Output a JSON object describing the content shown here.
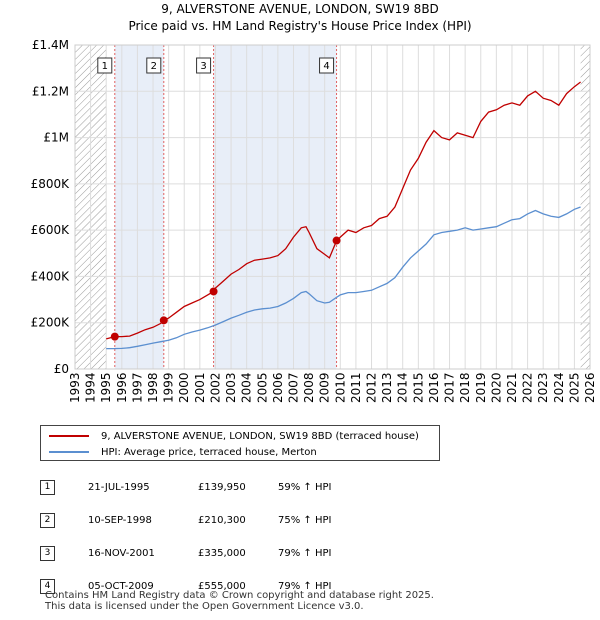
{
  "chart_title": "9, ALVERSTONE AVENUE, LONDON, SW19 8BD",
  "chart_subtitle": "Price paid vs. HM Land Registry's House Price Index (HPI)",
  "colors": {
    "property": "#c00000",
    "hpi": "#5b8fd0",
    "hatch": "#999999",
    "shade": "#e8eef8"
  },
  "chart_data": {
    "type": "line",
    "title": "9, ALVERSTONE AVENUE, LONDON, SW19 8BD",
    "subtitle": "Price paid vs. HM Land Registry's House Price Index (HPI)",
    "xlabel": "",
    "ylabel": "",
    "xlim": [
      1993,
      2026
    ],
    "ylim": [
      0,
      1400000
    ],
    "x_ticks": [
      1993,
      1994,
      1995,
      1996,
      1997,
      1998,
      1999,
      2000,
      2001,
      2002,
      2003,
      2004,
      2005,
      2006,
      2007,
      2008,
      2009,
      2010,
      2011,
      2012,
      2013,
      2014,
      2015,
      2016,
      2017,
      2018,
      2019,
      2020,
      2021,
      2022,
      2023,
      2024,
      2025,
      2026
    ],
    "y_ticks": [
      {
        "value": 0,
        "label": "£0"
      },
      {
        "value": 200000,
        "label": "£200K"
      },
      {
        "value": 400000,
        "label": "£400K"
      },
      {
        "value": 600000,
        "label": "£600K"
      },
      {
        "value": 800000,
        "label": "£800K"
      },
      {
        "value": 1000000,
        "label": "£1M"
      },
      {
        "value": 1200000,
        "label": "£1.2M"
      },
      {
        "value": 1400000,
        "label": "£1.4M"
      }
    ],
    "series": [
      {
        "name": "9, ALVERSTONE AVENUE, LONDON, SW19 8BD (terraced house)",
        "x": [
          1995.0,
          1995.55,
          1996.0,
          1996.5,
          1997.0,
          1997.5,
          1998.0,
          1998.5,
          1998.69,
          1999.0,
          1999.5,
          2000.0,
          2000.5,
          2001.0,
          2001.5,
          2001.88,
          2002.0,
          2002.5,
          2003.0,
          2003.5,
          2004.0,
          2004.5,
          2005.0,
          2005.5,
          2006.0,
          2006.5,
          2007.0,
          2007.5,
          2007.8,
          2008.0,
          2008.5,
          2009.0,
          2009.3,
          2009.76,
          2010.0,
          2010.5,
          2011.0,
          2011.5,
          2012.0,
          2012.5,
          2013.0,
          2013.5,
          2014.0,
          2014.5,
          2015.0,
          2015.5,
          2016.0,
          2016.5,
          2017.0,
          2017.5,
          2018.0,
          2018.5,
          2019.0,
          2019.5,
          2020.0,
          2020.5,
          2021.0,
          2021.5,
          2022.0,
          2022.5,
          2023.0,
          2023.5,
          2024.0,
          2024.5,
          2025.0,
          2025.4
        ],
        "values": [
          130000,
          139950,
          140000,
          142000,
          155000,
          170000,
          180000,
          197000,
          210300,
          220000,
          245000,
          270000,
          285000,
          300000,
          320000,
          335000,
          350000,
          380000,
          410000,
          430000,
          455000,
          470000,
          475000,
          480000,
          490000,
          520000,
          570000,
          610000,
          615000,
          590000,
          520000,
          495000,
          480000,
          555000,
          570000,
          600000,
          590000,
          610000,
          620000,
          650000,
          660000,
          700000,
          780000,
          860000,
          910000,
          980000,
          1030000,
          1000000,
          990000,
          1020000,
          1010000,
          1000000,
          1070000,
          1110000,
          1120000,
          1140000,
          1150000,
          1140000,
          1180000,
          1200000,
          1170000,
          1160000,
          1140000,
          1190000,
          1220000,
          1240000
        ]
      },
      {
        "name": "HPI: Average price, terraced house, Merton",
        "x": [
          1995.0,
          1995.5,
          1996.0,
          1996.5,
          1997.0,
          1997.5,
          1998.0,
          1998.5,
          1999.0,
          1999.5,
          2000.0,
          2000.5,
          2001.0,
          2001.5,
          2002.0,
          2002.5,
          2003.0,
          2003.5,
          2004.0,
          2004.5,
          2005.0,
          2005.5,
          2006.0,
          2006.5,
          2007.0,
          2007.5,
          2007.8,
          2008.0,
          2008.5,
          2009.0,
          2009.3,
          2009.76,
          2010.0,
          2010.5,
          2011.0,
          2011.5,
          2012.0,
          2012.5,
          2013.0,
          2013.5,
          2014.0,
          2014.5,
          2015.0,
          2015.5,
          2016.0,
          2016.5,
          2017.0,
          2017.5,
          2018.0,
          2018.5,
          2019.0,
          2019.5,
          2020.0,
          2020.5,
          2021.0,
          2021.5,
          2022.0,
          2022.5,
          2023.0,
          2023.5,
          2024.0,
          2024.5,
          2025.0,
          2025.4
        ],
        "values": [
          88000,
          88000,
          89000,
          92000,
          98000,
          105000,
          112000,
          118000,
          124000,
          135000,
          150000,
          160000,
          168000,
          178000,
          190000,
          205000,
          220000,
          232000,
          245000,
          255000,
          260000,
          263000,
          270000,
          285000,
          305000,
          330000,
          335000,
          325000,
          295000,
          285000,
          288000,
          310000,
          320000,
          330000,
          330000,
          335000,
          340000,
          355000,
          370000,
          395000,
          440000,
          480000,
          510000,
          540000,
          580000,
          590000,
          595000,
          600000,
          610000,
          600000,
          605000,
          610000,
          615000,
          630000,
          645000,
          650000,
          670000,
          685000,
          670000,
          660000,
          655000,
          670000,
          690000,
          700000
        ]
      }
    ],
    "sales": [
      {
        "label": "1",
        "x": 1995.55,
        "value": 139950
      },
      {
        "label": "2",
        "x": 1998.69,
        "value": 210300
      },
      {
        "label": "3",
        "x": 2001.88,
        "value": 335000
      },
      {
        "label": "4",
        "x": 2009.76,
        "value": 555000
      }
    ],
    "hatched_ranges": [
      [
        1993,
        1995.0
      ],
      [
        2025.4,
        2026
      ]
    ]
  },
  "legend": {
    "property_label": "9, ALVERSTONE AVENUE, LONDON, SW19 8BD (terraced house)",
    "hpi_label": "HPI: Average price, terraced house, Merton"
  },
  "sales_table": [
    {
      "num": "1",
      "date": "21-JUL-1995",
      "price": "£139,950",
      "hpi": "59% ↑ HPI"
    },
    {
      "num": "2",
      "date": "10-SEP-1998",
      "price": "£210,300",
      "hpi": "75% ↑ HPI"
    },
    {
      "num": "3",
      "date": "16-NOV-2001",
      "price": "£335,000",
      "hpi": "79% ↑ HPI"
    },
    {
      "num": "4",
      "date": "05-OCT-2009",
      "price": "£555,000",
      "hpi": "79% ↑ HPI"
    }
  ],
  "footer": {
    "line1": "Contains HM Land Registry data © Crown copyright and database right 2025.",
    "line2": "This data is licensed under the Open Government Licence v3.0."
  }
}
